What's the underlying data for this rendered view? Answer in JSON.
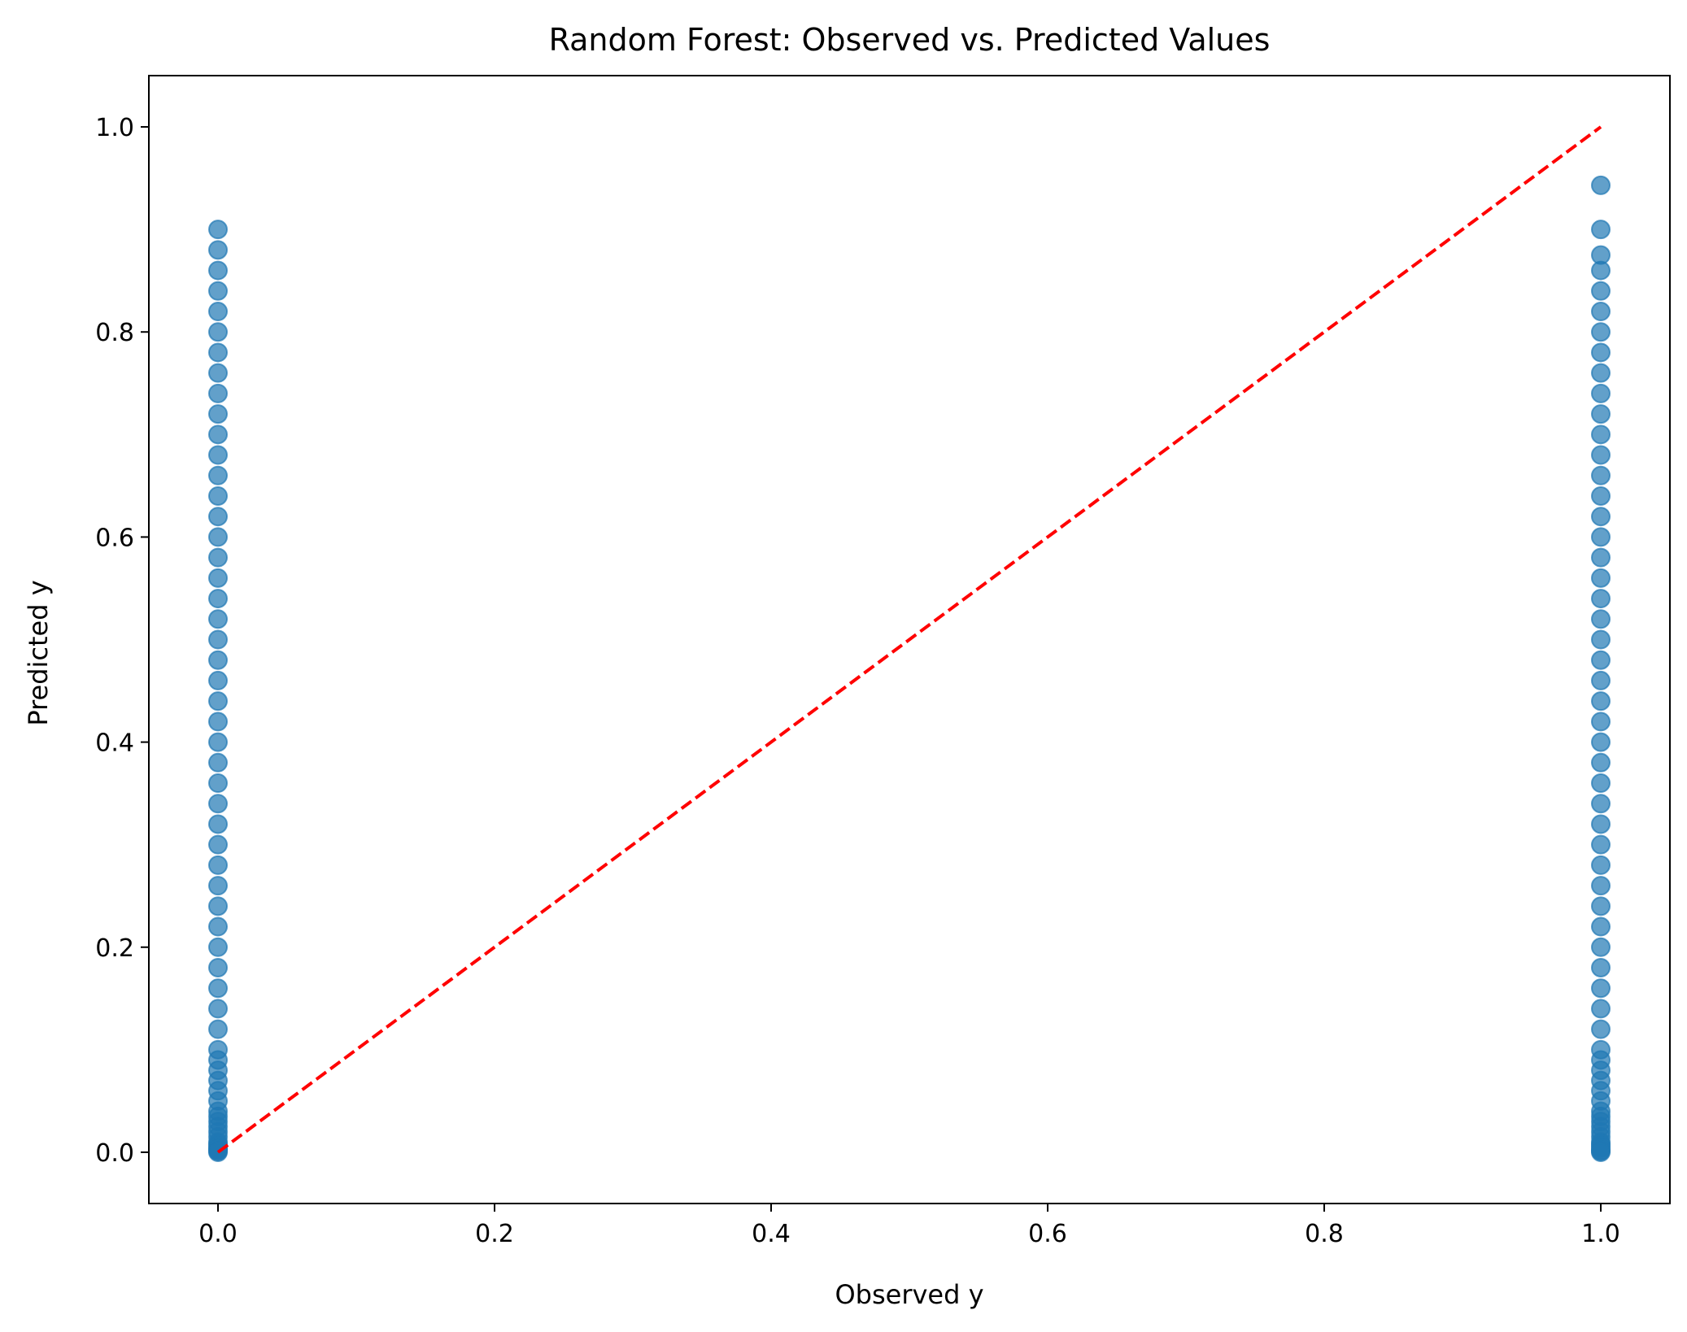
{
  "chart_data": {
    "type": "scatter",
    "title": "Random Forest: Observed vs. Predicted Values",
    "xlabel": "Observed y",
    "ylabel": "Predicted y",
    "xlim": [
      -0.05,
      1.05
    ],
    "ylim": [
      -0.05,
      1.05
    ],
    "xticks": [
      "0.0",
      "0.2",
      "0.4",
      "0.6",
      "0.8",
      "1.0"
    ],
    "yticks": [
      "0.0",
      "0.2",
      "0.4",
      "0.6",
      "0.8",
      "1.0"
    ],
    "grid": false,
    "colors": {
      "points": "#1f77b4",
      "reference_line": "#ff0000"
    },
    "series": [
      {
        "x": [
          0,
          0,
          0,
          0,
          0,
          0,
          0,
          0,
          0,
          0,
          0,
          0,
          0,
          0,
          0,
          0,
          0,
          0,
          0,
          0,
          0,
          0,
          0,
          0,
          0,
          0,
          0,
          0,
          0,
          0,
          0,
          0,
          0,
          0,
          0,
          0,
          0,
          0,
          0,
          0,
          0,
          0,
          0,
          0,
          0,
          0,
          0,
          0,
          0,
          0,
          0,
          0,
          0,
          0,
          0,
          0,
          0,
          0,
          0,
          0,
          1,
          1,
          1,
          1,
          1,
          1,
          1,
          1,
          1,
          1,
          1,
          1,
          1,
          1,
          1,
          1,
          1,
          1,
          1,
          1,
          1,
          1,
          1,
          1,
          1,
          1,
          1,
          1,
          1,
          1,
          1,
          1,
          1,
          1,
          1,
          1,
          1,
          1,
          1,
          1,
          1,
          1,
          1,
          1,
          1,
          1,
          1,
          1,
          1,
          1,
          1,
          1,
          1,
          1,
          1,
          1,
          1,
          1,
          1,
          1
        ],
        "y": [
          0.9,
          0.88,
          0.86,
          0.84,
          0.82,
          0.8,
          0.78,
          0.76,
          0.74,
          0.72,
          0.7,
          0.68,
          0.66,
          0.64,
          0.62,
          0.6,
          0.58,
          0.56,
          0.54,
          0.52,
          0.5,
          0.48,
          0.46,
          0.44,
          0.42,
          0.4,
          0.38,
          0.36,
          0.34,
          0.32,
          0.3,
          0.28,
          0.26,
          0.24,
          0.22,
          0.2,
          0.18,
          0.16,
          0.14,
          0.12,
          0.1,
          0.09,
          0.08,
          0.07,
          0.06,
          0.05,
          0.04,
          0.035,
          0.03,
          0.025,
          0.02,
          0.015,
          0.01,
          0.008,
          0.006,
          0.004,
          0.003,
          0.002,
          0.001,
          0.0,
          0.943,
          0.9,
          0.875,
          0.86,
          0.84,
          0.82,
          0.8,
          0.78,
          0.76,
          0.74,
          0.72,
          0.7,
          0.68,
          0.66,
          0.64,
          0.62,
          0.6,
          0.58,
          0.56,
          0.54,
          0.52,
          0.5,
          0.48,
          0.46,
          0.44,
          0.42,
          0.4,
          0.38,
          0.36,
          0.34,
          0.32,
          0.3,
          0.28,
          0.26,
          0.24,
          0.22,
          0.2,
          0.18,
          0.16,
          0.14,
          0.12,
          0.1,
          0.09,
          0.08,
          0.07,
          0.06,
          0.05,
          0.04,
          0.035,
          0.03,
          0.025,
          0.02,
          0.015,
          0.01,
          0.008,
          0.006,
          0.004,
          0.002,
          0.001,
          0.0
        ]
      }
    ],
    "reference_line": {
      "x": [
        0,
        1
      ],
      "y": [
        0,
        1
      ],
      "style": "dashed"
    }
  }
}
